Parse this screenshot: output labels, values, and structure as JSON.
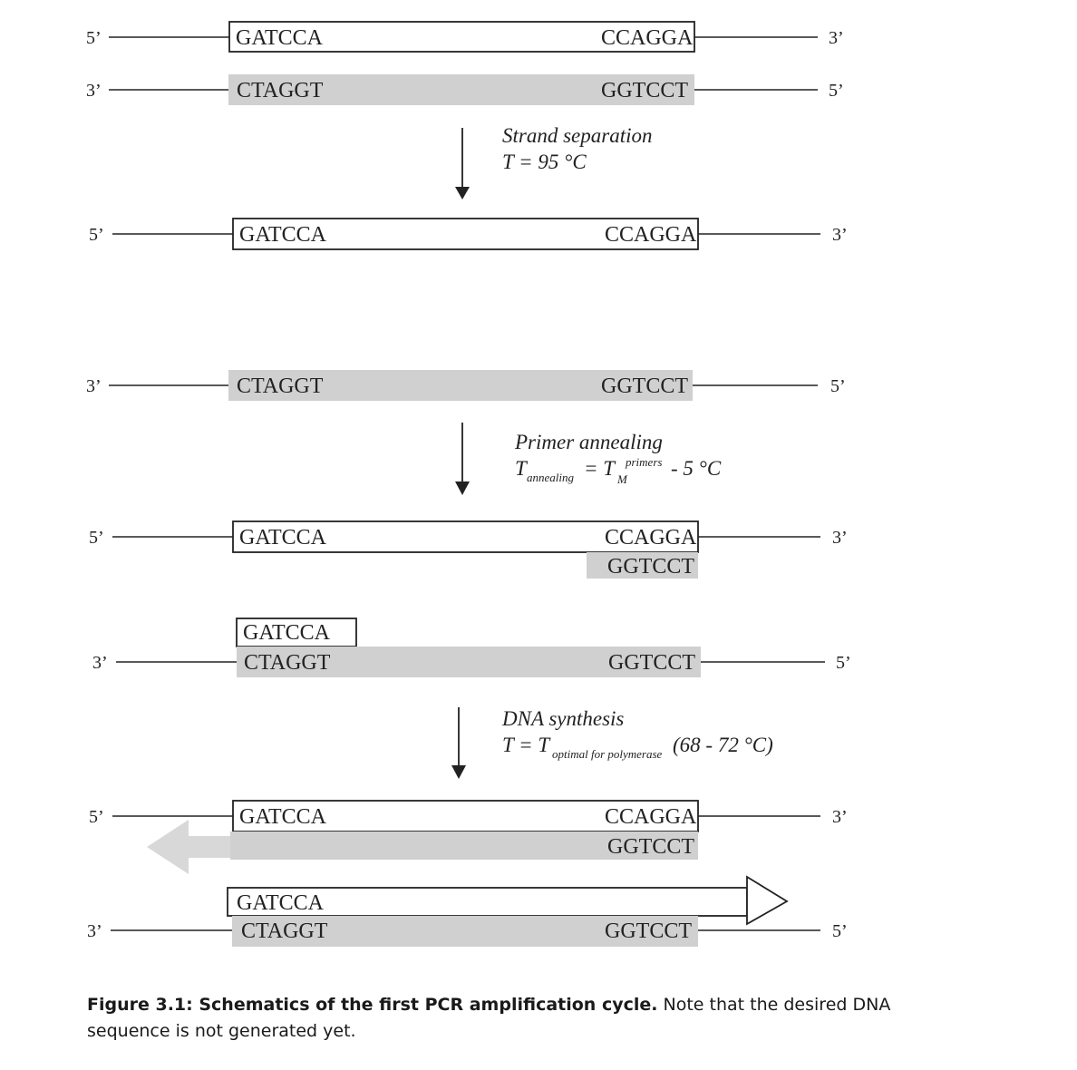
{
  "ends": {
    "five": "5’",
    "three": "3’"
  },
  "seq": {
    "fwd_left": "GATCCA",
    "fwd_right": "CCAGGA",
    "rev_left": "CTAGGT",
    "rev_right": "GGTCCT"
  },
  "steps": {
    "separation": {
      "title": "Strand separation",
      "temp": "T = 95 °C"
    },
    "annealing": {
      "title": "Primer annealing",
      "t": "T",
      "sub_annealing": "annealing",
      "eq": "= T",
      "sup_primers": "primers",
      "sub_m": "M",
      "tail": "- 5 °C"
    },
    "synthesis": {
      "title": "DNA synthesis",
      "t": "T = T",
      "sub_optimal": "optimal for polymerase",
      "tail": "(68 - 72 °C)"
    }
  },
  "caption": {
    "bold": "Figure 3.1: Schematics of the first PCR amplification cycle.",
    "text": " Note that the desired DNA sequence is not generated yet."
  },
  "colors": {
    "grey_strand": "#d0d0d0",
    "line": "#222222",
    "arrow_fill": "#d8d8d8"
  }
}
